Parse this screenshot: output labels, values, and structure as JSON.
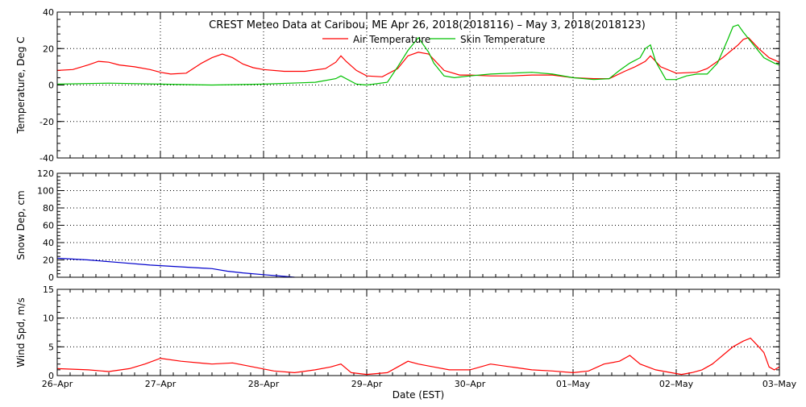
{
  "chart_data": {
    "type": "line",
    "title": "CREST Meteo Data at Caribou, ME   Apr 26, 2018(2018116) – May  3, 2018(2018123)",
    "xlabel": "Date (EST)",
    "x_tick_labels": [
      "26–Apr",
      "27–Apr",
      "28–Apr",
      "29–Apr",
      "30–Apr",
      "01–May",
      "02–May",
      "03–May"
    ],
    "xlim": [
      0,
      7
    ],
    "grid": true,
    "colors": {
      "air": "#ff0000",
      "skin": "#00c000",
      "snow": "#0000cc",
      "wind": "#ff0000"
    },
    "panels": [
      {
        "ylabel": "Temperature, Deg C",
        "ylim": [
          -40,
          40
        ],
        "yticks": [
          -40,
          -20,
          0,
          20,
          40
        ],
        "legend_position": "top-center",
        "series": [
          {
            "name": "Air Temperature",
            "x": [
              0,
              0.15,
              0.3,
              0.4,
              0.5,
              0.6,
              0.75,
              0.9,
              1.0,
              1.1,
              1.25,
              1.4,
              1.5,
              1.6,
              1.7,
              1.8,
              1.9,
              2.0,
              2.2,
              2.4,
              2.6,
              2.7,
              2.75,
              2.8,
              2.9,
              3.0,
              3.15,
              3.3,
              3.4,
              3.5,
              3.6,
              3.65,
              3.75,
              3.9,
              4.0,
              4.2,
              4.4,
              4.6,
              4.8,
              5.0,
              5.2,
              5.35,
              5.5,
              5.6,
              5.7,
              5.75,
              5.85,
              6.0,
              6.2,
              6.3,
              6.45,
              6.6,
              6.65,
              6.7,
              6.8,
              6.9,
              7.0
            ],
            "y": [
              8,
              8.5,
              11,
              13,
              12.5,
              11,
              10,
              8.5,
              7,
              6,
              6.5,
              12,
              15,
              17,
              15,
              11.5,
              9.5,
              8.5,
              7.5,
              7.5,
              9,
              12.5,
              16,
              13,
              8,
              5,
              4.5,
              9,
              16,
              18,
              17,
              14,
              8,
              5.5,
              5.5,
              5,
              5,
              5.5,
              5.5,
              4,
              3.5,
              3.5,
              7.5,
              10,
              13,
              16,
              10,
              6.5,
              7,
              9,
              15,
              22,
              25,
              26,
              20,
              15,
              12.5
            ]
          },
          {
            "name": "Skin Temperature",
            "x": [
              0,
              0.5,
              1.0,
              1.5,
              2.0,
              2.5,
              2.7,
              2.75,
              2.85,
              2.9,
              3.0,
              3.2,
              3.3,
              3.4,
              3.5,
              3.55,
              3.6,
              3.65,
              3.75,
              3.85,
              4.0,
              4.2,
              4.4,
              4.6,
              4.8,
              5.0,
              5.2,
              5.35,
              5.45,
              5.55,
              5.65,
              5.7,
              5.75,
              5.8,
              5.85,
              5.9,
              6.0,
              6.1,
              6.2,
              6.3,
              6.4,
              6.5,
              6.55,
              6.6,
              6.65,
              6.75,
              6.85,
              6.95,
              7.0
            ],
            "y": [
              0.5,
              1,
              0.5,
              0,
              0.5,
              1.5,
              3.5,
              5,
              2,
              0.5,
              0,
              1.5,
              10,
              19,
              26,
              22,
              18,
              12,
              5,
              4,
              5,
              6,
              6.5,
              7,
              6,
              4,
              3,
              3.5,
              8,
              12,
              15,
              20,
              22,
              13,
              8,
              3,
              3,
              5,
              6,
              6,
              12,
              25,
              32,
              33,
              29,
              22,
              15,
              12,
              11
            ]
          }
        ]
      },
      {
        "ylabel": "Snow Dep, cm",
        "ylim": [
          0,
          120
        ],
        "yticks": [
          0,
          20,
          40,
          60,
          80,
          100,
          120
        ],
        "series": [
          {
            "name": "",
            "x": [
              0,
              0.3,
              0.6,
              0.9,
              1.2,
              1.5,
              1.65,
              1.8,
              2.0,
              2.2,
              2.3
            ],
            "y": [
              22,
              20,
              17,
              14,
              12,
              10,
              7,
              5,
              3,
              1,
              0
            ]
          }
        ]
      },
      {
        "ylabel": "Wind Spd, m/s",
        "ylim": [
          0,
          15
        ],
        "yticks": [
          0,
          5,
          10,
          15
        ],
        "series": [
          {
            "name": "",
            "x": [
              0,
              0.3,
              0.5,
              0.7,
              0.85,
              1.0,
              1.2,
              1.5,
              1.7,
              1.9,
              2.1,
              2.3,
              2.5,
              2.65,
              2.75,
              2.85,
              3.0,
              3.2,
              3.3,
              3.4,
              3.5,
              3.65,
              3.8,
              4.0,
              4.2,
              4.4,
              4.6,
              4.8,
              5.0,
              5.15,
              5.3,
              5.45,
              5.55,
              5.65,
              5.8,
              5.95,
              6.05,
              6.15,
              6.25,
              6.35,
              6.45,
              6.55,
              6.65,
              6.72,
              6.8,
              6.85,
              6.9,
              6.95,
              7.0
            ],
            "y": [
              1.2,
              1,
              0.7,
              1.2,
              2,
              3,
              2.5,
              2,
              2.2,
              1.5,
              0.8,
              0.5,
              1,
              1.5,
              2,
              0.5,
              0.2,
              0.5,
              1.5,
              2.5,
              2,
              1.5,
              1,
              1,
              2,
              1.5,
              1,
              0.8,
              0.5,
              0.8,
              2,
              2.5,
              3.5,
              2,
              1,
              0.5,
              0.2,
              0.5,
              1,
              2,
              3.5,
              5,
              6,
              6.5,
              5,
              4,
              1.5,
              1,
              1.5
            ]
          }
        ]
      }
    ]
  }
}
